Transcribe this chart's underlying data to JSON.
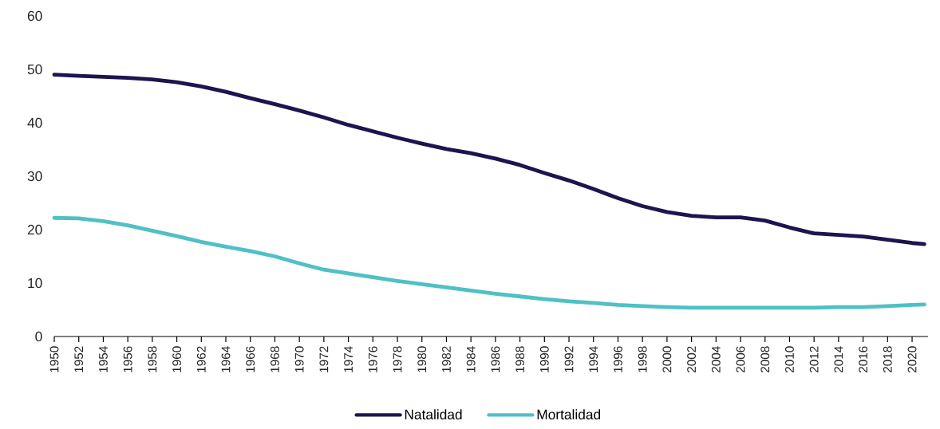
{
  "chart_data": {
    "type": "line",
    "x": [
      1950,
      1952,
      1954,
      1956,
      1958,
      1960,
      1962,
      1964,
      1966,
      1968,
      1970,
      1972,
      1974,
      1976,
      1978,
      1980,
      1982,
      1984,
      1986,
      1988,
      1990,
      1992,
      1994,
      1996,
      1998,
      2000,
      2002,
      2004,
      2006,
      2008,
      2010,
      2012,
      2014,
      2016,
      2018,
      2020,
      2021
    ],
    "series": [
      {
        "name": "Natalidad",
        "color": "#1f1350",
        "values": [
          49.0,
          48.8,
          48.6,
          48.4,
          48.1,
          47.6,
          46.8,
          45.8,
          44.6,
          43.5,
          42.3,
          41.0,
          39.6,
          38.4,
          37.2,
          36.1,
          35.1,
          34.3,
          33.3,
          32.1,
          30.6,
          29.2,
          27.6,
          25.9,
          24.4,
          23.3,
          22.6,
          22.3,
          22.3,
          21.7,
          20.4,
          19.3,
          19.0,
          18.7,
          18.1,
          17.5,
          17.3
        ]
      },
      {
        "name": "Mortalidad",
        "color": "#4fc1c5",
        "values": [
          22.2,
          22.1,
          21.6,
          20.8,
          19.8,
          18.8,
          17.7,
          16.8,
          16.0,
          15.0,
          13.7,
          12.5,
          11.8,
          11.1,
          10.4,
          9.8,
          9.2,
          8.6,
          8.0,
          7.5,
          7.0,
          6.6,
          6.3,
          5.9,
          5.7,
          5.5,
          5.4,
          5.4,
          5.4,
          5.4,
          5.4,
          5.4,
          5.5,
          5.5,
          5.7,
          5.9,
          6.0
        ]
      }
    ],
    "xlim": [
      1950,
      2021.3
    ],
    "xticks": [
      1950,
      1952,
      1954,
      1956,
      1958,
      1960,
      1962,
      1964,
      1966,
      1968,
      1970,
      1972,
      1974,
      1976,
      1978,
      1980,
      1982,
      1984,
      1986,
      1988,
      1990,
      1992,
      1994,
      1996,
      1998,
      2000,
      2002,
      2004,
      2006,
      2008,
      2010,
      2012,
      2014,
      2016,
      2018,
      2020
    ],
    "ylim": [
      0,
      60
    ],
    "yticks": [
      0,
      10,
      20,
      30,
      40,
      50,
      60
    ],
    "legend": "bottom",
    "line_style": "solid"
  }
}
